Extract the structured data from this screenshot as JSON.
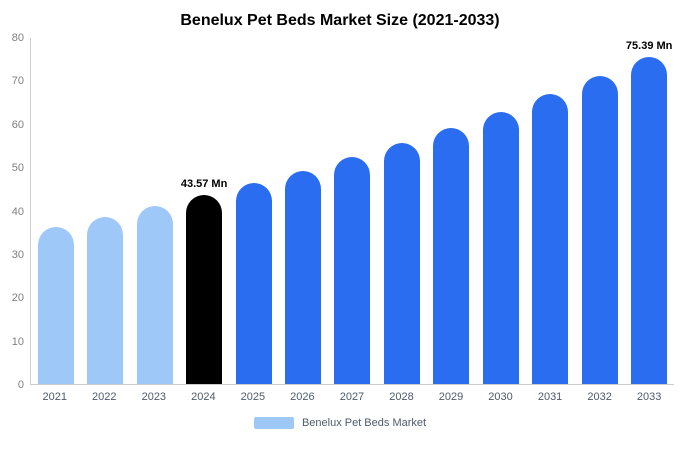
{
  "chart_data": {
    "type": "bar",
    "title": "Benelux Pet Beds Market Size (2021-2033)",
    "xlabel": "",
    "ylabel": "",
    "ylim": [
      0,
      80
    ],
    "yticks": [
      0,
      10,
      20,
      30,
      40,
      50,
      60,
      70,
      80
    ],
    "grid": false,
    "legend_position": "bottom",
    "legend": [
      {
        "label": "Benelux Pet Beds Market",
        "color": "#9ec8f7"
      }
    ],
    "colors": {
      "historical": "#9ec8f7",
      "base_year": "#000000",
      "forecast": "#2b6df0"
    },
    "bars": [
      {
        "category": "2021",
        "value": 36.3,
        "color": "#9ec8f7",
        "data_label": ""
      },
      {
        "category": "2022",
        "value": 38.6,
        "color": "#9ec8f7",
        "data_label": ""
      },
      {
        "category": "2023",
        "value": 41.0,
        "color": "#9ec8f7",
        "data_label": ""
      },
      {
        "category": "2024",
        "value": 43.57,
        "color": "#000000",
        "data_label": "43.57 Mn"
      },
      {
        "category": "2025",
        "value": 46.3,
        "color": "#2b6df0",
        "data_label": ""
      },
      {
        "category": "2026",
        "value": 49.2,
        "color": "#2b6df0",
        "data_label": ""
      },
      {
        "category": "2027",
        "value": 52.3,
        "color": "#2b6df0",
        "data_label": ""
      },
      {
        "category": "2028",
        "value": 55.6,
        "color": "#2b6df0",
        "data_label": ""
      },
      {
        "category": "2029",
        "value": 59.1,
        "color": "#2b6df0",
        "data_label": ""
      },
      {
        "category": "2030",
        "value": 62.8,
        "color": "#2b6df0",
        "data_label": ""
      },
      {
        "category": "2031",
        "value": 66.8,
        "color": "#2b6df0",
        "data_label": ""
      },
      {
        "category": "2032",
        "value": 70.9,
        "color": "#2b6df0",
        "data_label": ""
      },
      {
        "category": "2033",
        "value": 75.39,
        "color": "#2b6df0",
        "data_label": "75.39 Mn"
      }
    ]
  }
}
